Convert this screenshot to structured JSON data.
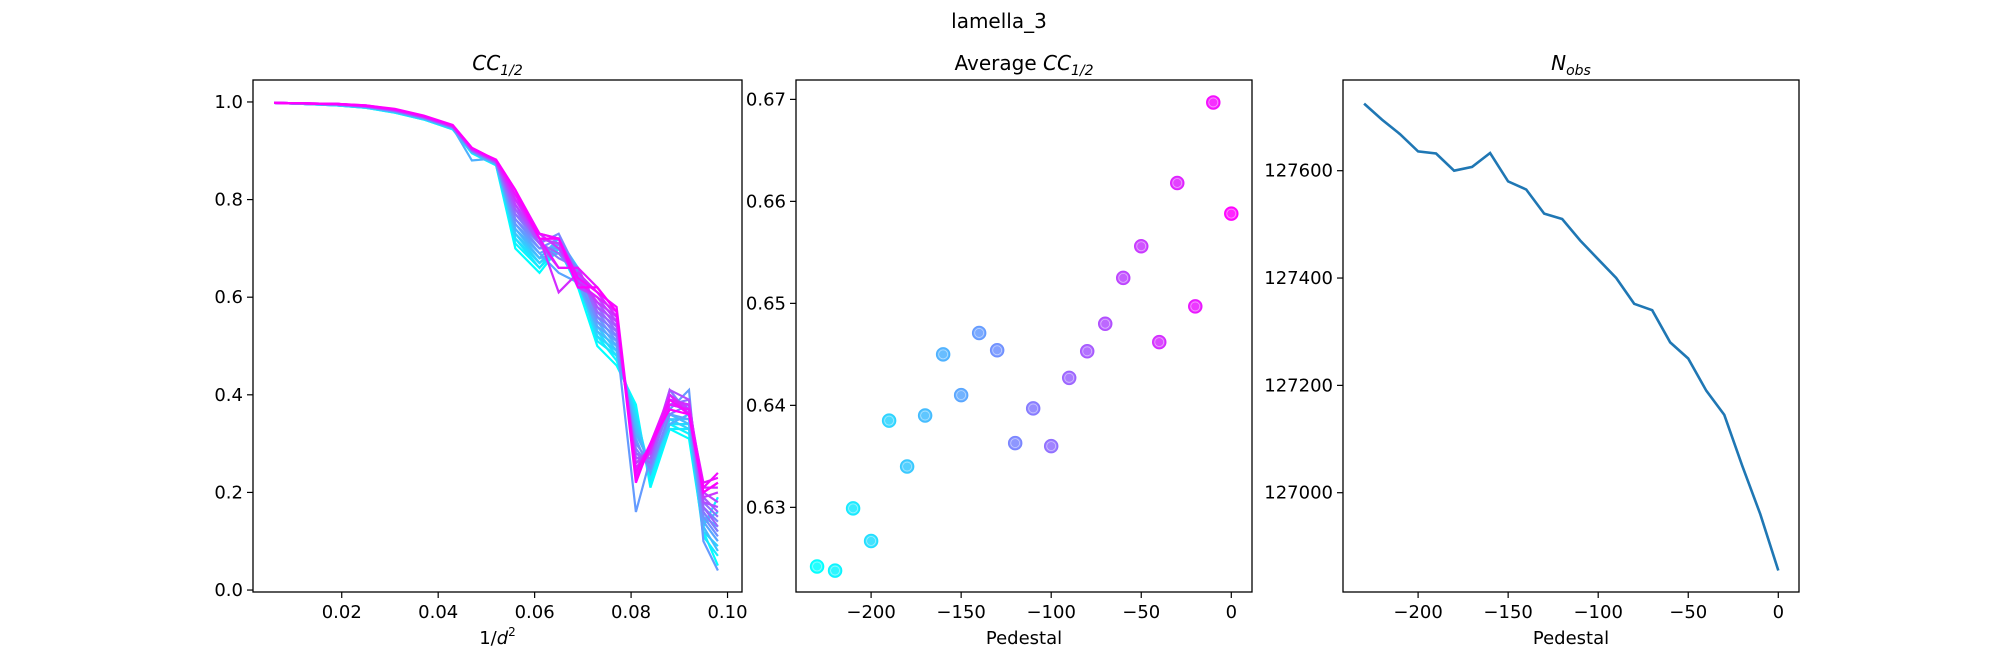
{
  "suptitle": "lamella_3",
  "chart_data": [
    {
      "type": "line",
      "title": {
        "main": "CC",
        "sub": "1/2"
      },
      "xlabel": {
        "main": "1/d",
        "sup": "2"
      },
      "ylabel": "",
      "xlim": [
        0.0016,
        0.103
      ],
      "ylim": [
        -0.004,
        1.045
      ],
      "xticks": [
        0.02,
        0.04,
        0.06,
        0.08,
        0.1
      ],
      "xtick_labels": [
        "0.02",
        "0.04",
        "0.06",
        "0.08",
        "0.10"
      ],
      "yticks": [
        0.0,
        0.2,
        0.4,
        0.6,
        0.8,
        1.0
      ],
      "ytick_labels": [
        "0.0",
        "0.2",
        "0.4",
        "0.6",
        "0.8",
        "1.0"
      ],
      "colormap": "cool",
      "x": [
        0.006,
        0.012,
        0.019,
        0.025,
        0.031,
        0.037,
        0.043,
        0.047,
        0.05,
        0.052,
        0.056,
        0.061,
        0.065,
        0.069,
        0.073,
        0.077,
        0.081,
        0.084,
        0.088,
        0.092,
        0.095,
        0.098
      ],
      "series": [
        {
          "pedestal": -230,
          "values": [
            0.998,
            0.996,
            0.993,
            0.988,
            0.978,
            0.964,
            0.944,
            0.895,
            0.88,
            0.87,
            0.7,
            0.65,
            0.7,
            0.62,
            0.5,
            0.46,
            0.38,
            0.21,
            0.33,
            0.31,
            0.12,
            0.05
          ]
        },
        {
          "pedestal": -220,
          "values": [
            0.998,
            0.996,
            0.993,
            0.988,
            0.978,
            0.964,
            0.944,
            0.896,
            0.88,
            0.871,
            0.71,
            0.66,
            0.71,
            0.63,
            0.52,
            0.47,
            0.37,
            0.22,
            0.34,
            0.32,
            0.13,
            0.19
          ]
        },
        {
          "pedestal": -210,
          "values": [
            0.998,
            0.996,
            0.993,
            0.988,
            0.979,
            0.965,
            0.945,
            0.896,
            0.881,
            0.871,
            0.72,
            0.66,
            0.7,
            0.64,
            0.51,
            0.48,
            0.36,
            0.23,
            0.33,
            0.33,
            0.11,
            0.07
          ]
        },
        {
          "pedestal": -200,
          "values": [
            0.998,
            0.996,
            0.993,
            0.989,
            0.979,
            0.965,
            0.945,
            0.897,
            0.881,
            0.872,
            0.72,
            0.67,
            0.71,
            0.65,
            0.53,
            0.48,
            0.36,
            0.24,
            0.34,
            0.34,
            0.14,
            0.16
          ]
        },
        {
          "pedestal": -190,
          "values": [
            0.998,
            0.996,
            0.994,
            0.989,
            0.979,
            0.965,
            0.946,
            0.897,
            0.882,
            0.872,
            0.73,
            0.67,
            0.7,
            0.63,
            0.52,
            0.49,
            0.35,
            0.24,
            0.35,
            0.33,
            0.12,
            0.09
          ]
        },
        {
          "pedestal": -180,
          "values": [
            0.998,
            0.996,
            0.994,
            0.989,
            0.98,
            0.966,
            0.946,
            0.898,
            0.882,
            0.873,
            0.73,
            0.68,
            0.72,
            0.66,
            0.54,
            0.49,
            0.34,
            0.25,
            0.35,
            0.35,
            0.15,
            0.13
          ]
        },
        {
          "pedestal": -170,
          "values": [
            0.998,
            0.996,
            0.994,
            0.989,
            0.98,
            0.966,
            0.946,
            0.898,
            0.883,
            0.873,
            0.74,
            0.68,
            0.69,
            0.64,
            0.53,
            0.5,
            0.33,
            0.25,
            0.36,
            0.34,
            0.13,
            0.08
          ]
        },
        {
          "pedestal": -160,
          "values": [
            0.998,
            0.996,
            0.994,
            0.99,
            0.98,
            0.966,
            0.947,
            0.88,
            0.883,
            0.874,
            0.74,
            0.69,
            0.71,
            0.65,
            0.55,
            0.5,
            0.32,
            0.26,
            0.34,
            0.36,
            0.16,
            0.12
          ]
        },
        {
          "pedestal": -150,
          "values": [
            0.998,
            0.996,
            0.994,
            0.99,
            0.981,
            0.967,
            0.947,
            0.899,
            0.884,
            0.874,
            0.75,
            0.69,
            0.65,
            0.63,
            0.54,
            0.51,
            0.31,
            0.24,
            0.36,
            0.35,
            0.14,
            0.1
          ]
        },
        {
          "pedestal": -140,
          "values": [
            0.998,
            0.996,
            0.994,
            0.99,
            0.981,
            0.967,
            0.948,
            0.899,
            0.884,
            0.875,
            0.75,
            0.7,
            0.7,
            0.66,
            0.56,
            0.51,
            0.16,
            0.27,
            0.37,
            0.41,
            0.1,
            0.04
          ]
        },
        {
          "pedestal": -130,
          "values": [
            0.998,
            0.996,
            0.995,
            0.99,
            0.981,
            0.967,
            0.948,
            0.9,
            0.885,
            0.875,
            0.76,
            0.7,
            0.72,
            0.64,
            0.55,
            0.52,
            0.3,
            0.26,
            0.38,
            0.37,
            0.15,
            0.11
          ]
        },
        {
          "pedestal": -120,
          "values": [
            0.998,
            0.997,
            0.995,
            0.99,
            0.982,
            0.968,
            0.948,
            0.9,
            0.885,
            0.876,
            0.76,
            0.71,
            0.73,
            0.65,
            0.57,
            0.52,
            0.29,
            0.25,
            0.36,
            0.38,
            0.17,
            0.14
          ]
        },
        {
          "pedestal": -110,
          "values": [
            0.998,
            0.997,
            0.995,
            0.991,
            0.982,
            0.968,
            0.949,
            0.901,
            0.886,
            0.876,
            0.77,
            0.71,
            0.68,
            0.66,
            0.56,
            0.53,
            0.28,
            0.27,
            0.41,
            0.36,
            0.16,
            0.12
          ]
        },
        {
          "pedestal": -100,
          "values": [
            0.998,
            0.997,
            0.995,
            0.991,
            0.982,
            0.968,
            0.949,
            0.901,
            0.886,
            0.877,
            0.77,
            0.72,
            0.71,
            0.64,
            0.58,
            0.53,
            0.28,
            0.26,
            0.38,
            0.39,
            0.18,
            0.15
          ]
        },
        {
          "pedestal": -90,
          "values": [
            0.998,
            0.997,
            0.995,
            0.991,
            0.983,
            0.969,
            0.949,
            0.902,
            0.887,
            0.877,
            0.78,
            0.71,
            0.69,
            0.65,
            0.57,
            0.54,
            0.27,
            0.28,
            0.4,
            0.37,
            0.17,
            0.13
          ]
        },
        {
          "pedestal": -80,
          "values": [
            0.998,
            0.997,
            0.995,
            0.991,
            0.983,
            0.969,
            0.95,
            0.902,
            0.887,
            0.878,
            0.78,
            0.72,
            0.72,
            0.63,
            0.59,
            0.54,
            0.27,
            0.27,
            0.39,
            0.38,
            0.19,
            0.16
          ]
        },
        {
          "pedestal": -70,
          "values": [
            0.998,
            0.997,
            0.995,
            0.991,
            0.983,
            0.969,
            0.95,
            0.903,
            0.888,
            0.878,
            0.79,
            0.71,
            0.66,
            0.66,
            0.58,
            0.55,
            0.26,
            0.28,
            0.41,
            0.39,
            0.18,
            0.17
          ]
        },
        {
          "pedestal": -60,
          "values": [
            0.998,
            0.997,
            0.995,
            0.992,
            0.984,
            0.97,
            0.95,
            0.903,
            0.888,
            0.879,
            0.79,
            0.72,
            0.71,
            0.62,
            0.6,
            0.55,
            0.26,
            0.29,
            0.38,
            0.38,
            0.2,
            0.18
          ]
        },
        {
          "pedestal": -50,
          "values": [
            0.998,
            0.997,
            0.996,
            0.992,
            0.984,
            0.97,
            0.951,
            0.904,
            0.889,
            0.879,
            0.8,
            0.73,
            0.7,
            0.64,
            0.59,
            0.56,
            0.25,
            0.28,
            0.4,
            0.37,
            0.19,
            0.2
          ]
        },
        {
          "pedestal": -40,
          "values": [
            0.998,
            0.997,
            0.996,
            0.992,
            0.984,
            0.97,
            0.951,
            0.904,
            0.889,
            0.88,
            0.8,
            0.72,
            0.61,
            0.65,
            0.61,
            0.56,
            0.25,
            0.29,
            0.39,
            0.38,
            0.21,
            0.21
          ]
        },
        {
          "pedestal": -30,
          "values": [
            0.998,
            0.997,
            0.996,
            0.992,
            0.985,
            0.971,
            0.952,
            0.905,
            0.89,
            0.88,
            0.81,
            0.73,
            0.72,
            0.63,
            0.6,
            0.57,
            0.24,
            0.3,
            0.4,
            0.36,
            0.2,
            0.22
          ]
        },
        {
          "pedestal": -20,
          "values": [
            0.998,
            0.997,
            0.996,
            0.992,
            0.985,
            0.971,
            0.952,
            0.905,
            0.89,
            0.881,
            0.81,
            0.72,
            0.66,
            0.66,
            0.62,
            0.57,
            0.23,
            0.29,
            0.38,
            0.37,
            0.22,
            0.23
          ]
        },
        {
          "pedestal": -10,
          "values": [
            0.998,
            0.997,
            0.996,
            0.993,
            0.985,
            0.971,
            0.952,
            0.906,
            0.891,
            0.881,
            0.82,
            0.73,
            0.72,
            0.64,
            0.61,
            0.58,
            0.24,
            0.3,
            0.39,
            0.36,
            0.21,
            0.24
          ]
        },
        {
          "pedestal": 0,
          "values": [
            0.998,
            0.997,
            0.996,
            0.993,
            0.986,
            0.972,
            0.953,
            0.906,
            0.891,
            0.882,
            0.82,
            0.72,
            0.72,
            0.62,
            0.62,
            0.57,
            0.22,
            0.3,
            0.37,
            0.36,
            0.2,
            0.22
          ]
        }
      ]
    },
    {
      "type": "scatter",
      "title": {
        "prefix": "Average ",
        "main": "CC",
        "sub": "1/2"
      },
      "xlabel": "Pedestal",
      "ylabel": "",
      "xlim": [
        -241.7,
        11.5
      ],
      "ylim": [
        0.6217,
        0.6719
      ],
      "xticks": [
        -200,
        -150,
        -100,
        -50,
        0
      ],
      "xtick_labels": [
        "−200",
        "−150",
        "−100",
        "−50",
        "0"
      ],
      "yticks": [
        0.63,
        0.64,
        0.65,
        0.66,
        0.67
      ],
      "ytick_labels": [
        "0.63",
        "0.64",
        "0.65",
        "0.66",
        "0.67"
      ],
      "colormap": "cool",
      "x": [
        -230,
        -220,
        -210,
        -200,
        -190,
        -180,
        -170,
        -160,
        -150,
        -140,
        -130,
        -120,
        -110,
        -100,
        -90,
        -80,
        -70,
        -60,
        -50,
        -40,
        -30,
        -20,
        -10,
        0
      ],
      "y": [
        0.6242,
        0.6238,
        0.6299,
        0.6267,
        0.6385,
        0.634,
        0.639,
        0.645,
        0.641,
        0.6471,
        0.6454,
        0.6363,
        0.6397,
        0.636,
        0.6427,
        0.6453,
        0.648,
        0.6525,
        0.6556,
        0.6462,
        0.6618,
        0.6497,
        0.6697,
        0.6588
      ]
    },
    {
      "type": "line",
      "title": {
        "main": "N",
        "sub": "obs"
      },
      "xlabel": "Pedestal",
      "ylabel": "",
      "xlim": [
        -241.7,
        11.5
      ],
      "ylim": [
        126815,
        127769
      ],
      "xticks": [
        -200,
        -150,
        -100,
        -50,
        0
      ],
      "xtick_labels": [
        "−200",
        "−150",
        "−100",
        "−50",
        "0"
      ],
      "yticks": [
        127000,
        127200,
        127400,
        127600
      ],
      "ytick_labels": [
        "127000",
        "127200",
        "127400",
        "127600"
      ],
      "color": "#1f77b4",
      "x": [
        -230,
        -220,
        -210,
        -200,
        -190,
        -180,
        -170,
        -160,
        -150,
        -140,
        -130,
        -120,
        -110,
        -100,
        -90,
        -80,
        -70,
        -60,
        -50,
        -40,
        -30,
        -20,
        -10,
        0
      ],
      "y": [
        127725,
        127695,
        127668,
        127636,
        127632,
        127600,
        127607,
        127633,
        127580,
        127565,
        127520,
        127510,
        127470,
        127435,
        127400,
        127352,
        127340,
        127280,
        127250,
        127190,
        127145,
        127050,
        126960,
        126855
      ]
    }
  ]
}
